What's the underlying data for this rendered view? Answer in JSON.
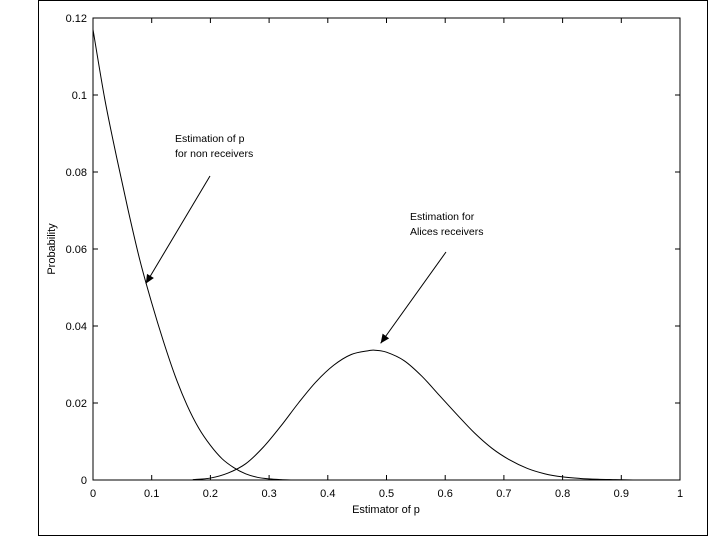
{
  "chart_data": {
    "type": "line",
    "title": "",
    "xlabel": "Estimator of p",
    "ylabel": "Probability",
    "xlim": [
      0,
      1
    ],
    "ylim": [
      0,
      0.12
    ],
    "xticks": [
      "0",
      "0.1",
      "0.2",
      "0.3",
      "0.4",
      "0.5",
      "0.6",
      "0.7",
      "0.8",
      "0.9",
      "1"
    ],
    "yticks": [
      "0",
      "0.02",
      "0.04",
      "0.06",
      "0.08",
      "0.1",
      "0.12"
    ],
    "grid": false,
    "series": [
      {
        "points": [
          [
            0.0,
            0.117
          ],
          [
            0.02,
            0.099
          ],
          [
            0.04,
            0.084
          ],
          [
            0.06,
            0.07
          ],
          [
            0.08,
            0.057
          ],
          [
            0.1,
            0.046
          ],
          [
            0.12,
            0.036
          ],
          [
            0.14,
            0.027
          ],
          [
            0.16,
            0.0195
          ],
          [
            0.18,
            0.0135
          ],
          [
            0.2,
            0.009
          ],
          [
            0.22,
            0.0055
          ],
          [
            0.24,
            0.0032
          ],
          [
            0.26,
            0.0016
          ],
          [
            0.28,
            0.0007
          ],
          [
            0.3,
            0.0003
          ],
          [
            0.32,
            0.0001
          ],
          [
            0.34,
            0.0
          ]
        ]
      },
      {
        "points": [
          [
            0.17,
            0.0001
          ],
          [
            0.2,
            0.0005
          ],
          [
            0.23,
            0.0018
          ],
          [
            0.26,
            0.0042
          ],
          [
            0.29,
            0.0085
          ],
          [
            0.32,
            0.014
          ],
          [
            0.35,
            0.02
          ],
          [
            0.38,
            0.0255
          ],
          [
            0.41,
            0.0298
          ],
          [
            0.44,
            0.0326
          ],
          [
            0.47,
            0.0336
          ],
          [
            0.48,
            0.0337
          ],
          [
            0.5,
            0.0332
          ],
          [
            0.53,
            0.031
          ],
          [
            0.56,
            0.027
          ],
          [
            0.59,
            0.022
          ],
          [
            0.62,
            0.017
          ],
          [
            0.65,
            0.0122
          ],
          [
            0.68,
            0.0082
          ],
          [
            0.71,
            0.0052
          ],
          [
            0.74,
            0.003
          ],
          [
            0.77,
            0.0016
          ],
          [
            0.8,
            0.0008
          ],
          [
            0.83,
            0.0004
          ],
          [
            0.86,
            0.0002
          ],
          [
            0.89,
            0.0001
          ],
          [
            0.92,
            0.0
          ]
        ]
      }
    ],
    "annotations": [
      {
        "lines": [
          "Estimation of p",
          "for non receivers"
        ],
        "arrow_to": [
          0.09,
          0.051
        ]
      },
      {
        "lines": [
          "Estimation for",
          "Alices receivers"
        ],
        "arrow_to": [
          0.49,
          0.0355
        ]
      }
    ]
  }
}
